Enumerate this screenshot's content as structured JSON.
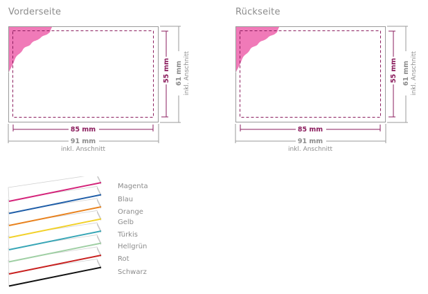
{
  "front": {
    "title": "Vorderseite",
    "width_label": "85 mm",
    "height_label": "55 mm",
    "outer_width_label": "91 mm",
    "outer_height_label": "61 mm",
    "bleed_label": "inkl. Anschnitt"
  },
  "back": {
    "title": "Rückseite",
    "width_label": "85 mm",
    "height_label": "55 mm",
    "outer_width_label": "91 mm",
    "outer_height_label": "61 mm",
    "bleed_label": "inkl. Anschnitt"
  },
  "colors": {
    "items": [
      {
        "label": "Magenta",
        "hex": "#d4237a"
      },
      {
        "label": "Blau",
        "hex": "#1f5ea8"
      },
      {
        "label": "Orange",
        "hex": "#e8821e"
      },
      {
        "label": "Gelb",
        "hex": "#f2d12a"
      },
      {
        "label": "Türkis",
        "hex": "#38a6b6"
      },
      {
        "label": "Hellgrün",
        "hex": "#9fcfa4"
      },
      {
        "label": "Rot",
        "hex": "#c8201f"
      },
      {
        "label": "Schwarz",
        "hex": "#111111"
      }
    ]
  },
  "accent": "#8a1b5c",
  "corner_color": "#f07ab8"
}
